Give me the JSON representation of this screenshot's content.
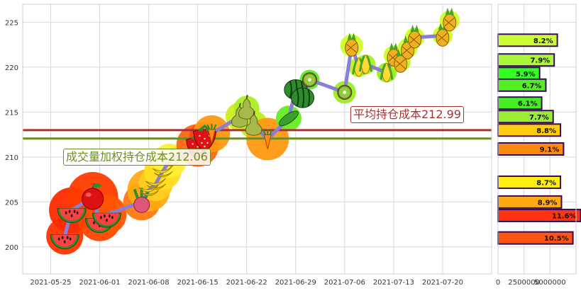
{
  "chart_data": [
    {
      "type": "line",
      "x_ticks": [
        "2021-05-25",
        "2021-06-01",
        "2021-06-08",
        "2021-06-15",
        "2021-06-22",
        "2021-06-29",
        "2021-07-06",
        "2021-07-13",
        "2021-07-20"
      ],
      "x_start": "2021-05-21",
      "x_end": "2021-07-27",
      "ylim": [
        197,
        227
      ],
      "y_ticks": [
        200,
        205,
        210,
        215,
        220,
        225
      ],
      "grid": true,
      "series": [
        {
          "values": [
            {
              "date": "2021-05-27",
              "price": 201.2,
              "fruit": "watermelon"
            },
            {
              "date": "2021-05-28",
              "price": 204.1,
              "fruit": "watermelon"
            },
            {
              "date": "2021-05-31",
              "price": 205.5,
              "fruit": "apple"
            },
            {
              "date": "2021-06-01",
              "price": 203.0,
              "fruit": "watermelon"
            },
            {
              "date": "2021-06-02",
              "price": 203.6,
              "fruit": "watermelon"
            },
            {
              "date": "2021-06-07",
              "price": 205.0,
              "fruit": "radish"
            },
            {
              "date": "2021-06-08",
              "price": 206.3,
              "fruit": "banana"
            },
            {
              "date": "2021-06-09",
              "price": 207.0,
              "fruit": "banana"
            },
            {
              "date": "2021-06-10",
              "price": 208.4,
              "fruit": "banana"
            },
            {
              "date": "2021-06-11",
              "price": 209.6,
              "fruit": "banana"
            },
            {
              "date": "2021-06-15",
              "price": 211.3,
              "fruit": "strawberry"
            },
            {
              "date": "2021-06-16",
              "price": 212.2,
              "fruit": "strawberry"
            },
            {
              "date": "2021-06-17",
              "price": 212.6,
              "fruit": "carrot"
            },
            {
              "date": "2021-06-21",
              "price": 214.5,
              "fruit": "pear"
            },
            {
              "date": "2021-06-22",
              "price": 215.4,
              "fruit": "pear"
            },
            {
              "date": "2021-06-23",
              "price": 213.6,
              "fruit": "pear"
            },
            {
              "date": "2021-06-25",
              "price": 212.0,
              "fruit": "carrot"
            },
            {
              "date": "2021-06-28",
              "price": 214.3,
              "fruit": "cucumber"
            },
            {
              "date": "2021-06-29",
              "price": 217.5,
              "fruit": "watermelon-round"
            },
            {
              "date": "2021-06-30",
              "price": 216.6,
              "fruit": "watermelon-round"
            },
            {
              "date": "2021-07-01",
              "price": 218.6,
              "fruit": "kiwi"
            },
            {
              "date": "2021-07-06",
              "price": 217.2,
              "fruit": "kiwi"
            },
            {
              "date": "2021-07-07",
              "price": 222.4,
              "fruit": "pineapple"
            },
            {
              "date": "2021-07-08",
              "price": 220.0,
              "fruit": "corn"
            },
            {
              "date": "2021-07-09",
              "price": 220.3,
              "fruit": "corn"
            },
            {
              "date": "2021-07-12",
              "price": 219.4,
              "fruit": "corn"
            },
            {
              "date": "2021-07-13",
              "price": 221.3,
              "fruit": "pineapple"
            },
            {
              "date": "2021-07-14",
              "price": 220.6,
              "fruit": "pineapple"
            },
            {
              "date": "2021-07-15",
              "price": 222.1,
              "fruit": "pineapple"
            },
            {
              "date": "2021-07-16",
              "price": 223.3,
              "fruit": "pineapple"
            },
            {
              "date": "2021-07-20",
              "price": 223.5,
              "fruit": "pineapple"
            },
            {
              "date": "2021-07-21",
              "price": 225.2,
              "fruit": "pineapple"
            }
          ]
        }
      ],
      "hlines": [
        {
          "value": 212.99,
          "label": "平均持仓成本212.99",
          "color": "#a83232"
        },
        {
          "value": 212.06,
          "label": "成交量加权持仓成本212.06",
          "color": "#6b8e23"
        }
      ],
      "line_color": "#8a7fd6"
    },
    {
      "type": "bar",
      "orientation": "horizontal",
      "xlim": [
        0,
        7500000
      ],
      "x_ticks": [
        0,
        2500000,
        5000000
      ],
      "x_tick_labels": [
        "0",
        "2500000",
        "5000000"
      ],
      "bars": [
        {
          "price": 223.0,
          "value": 5700000,
          "label": "8.2%",
          "color": "#ccff33"
        },
        {
          "price": 220.8,
          "value": 5400000,
          "label": "7.9%",
          "color": "#aaf73a"
        },
        {
          "price": 219.3,
          "value": 4000000,
          "label": "5.9%",
          "color": "#33ff22"
        },
        {
          "price": 218.0,
          "value": 4600000,
          "label": "6.7%",
          "color": "#55ee22"
        },
        {
          "price": 216.0,
          "value": 4200000,
          "label": "6.1%",
          "color": "#44ee22"
        },
        {
          "price": 214.5,
          "value": 5300000,
          "label": "7.7%",
          "color": "#99ee33"
        },
        {
          "price": 213.0,
          "value": 6000000,
          "label": "8.8%",
          "color": "#ffcc11"
        },
        {
          "price": 210.9,
          "value": 6300000,
          "label": "9.1%",
          "color": "#ff8811"
        },
        {
          "price": 207.2,
          "value": 6000000,
          "label": "8.7%",
          "color": "#ffee11"
        },
        {
          "price": 205.0,
          "value": 6100000,
          "label": "8.9%",
          "color": "#ffaa11"
        },
        {
          "price": 203.5,
          "value": 7950000,
          "label": "11.6%",
          "color": "#ff3311"
        },
        {
          "price": 201.0,
          "value": 7200000,
          "label": "10.5%",
          "color": "#ff5511"
        }
      ]
    }
  ]
}
